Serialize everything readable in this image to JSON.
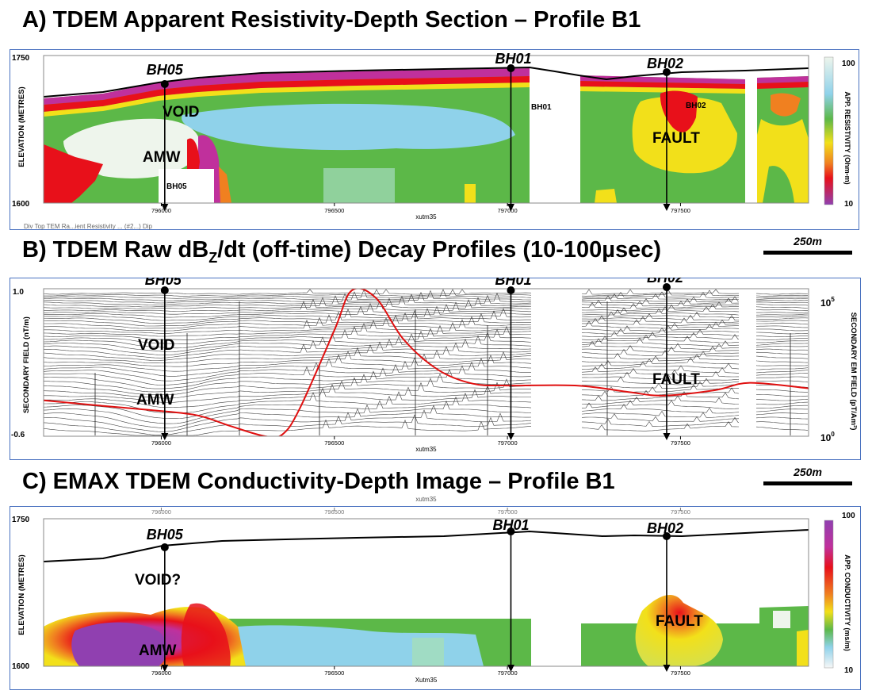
{
  "colors": {
    "frame": "#4a72c0",
    "trace": "#222222",
    "red_curve": "#e01010",
    "magenta": "#c0309c",
    "red": "#e8101a",
    "orange": "#f08020",
    "yellow": "#f2e01a",
    "green": "#5cb848",
    "light_blue": "#8fd2ea",
    "pale": "#eef5ec"
  },
  "panels": {
    "a": {
      "title": "A) TDEM Apparent Resistivity-Depth Section – Profile B1",
      "y_top": "1750",
      "y_bottom": "1600",
      "y_axis_label": "ELEVATION (METRES)",
      "colorbar_label": "APP. RESISTIVITY (Ohm-m)",
      "colorbar_max": "100",
      "colorbar_min": "10",
      "annotations": {
        "void": "VOID",
        "amw": "AMW",
        "fault": "FAULT"
      },
      "borehole_small": {
        "bh05": "BH05",
        "bh01": "BH01",
        "bh02": "BH02"
      },
      "overlay_text": "Div Top TEM Ra...ient Resistivity ... (#2...) Dip"
    },
    "b": {
      "title_pre": "B) TDEM Raw dB",
      "title_sub": "Z",
      "title_post": "/dt (off-time) Decay Profiles (10-100µsec)",
      "y_top": "1.0",
      "y_bottom": "-0.6",
      "y_axis_label": "SECONDARY FIELD (nT/m)",
      "right_axis_label": "SECONDARY EM FIELD (pT/Am²)",
      "right_top_base": "10",
      "right_top_exp": "5",
      "right_bottom_base": "10",
      "right_bottom_exp": "0",
      "annotations": {
        "void": "VOID",
        "amw": "AMW",
        "fault": "FAULT"
      },
      "scale_label": "250m"
    },
    "c": {
      "title": "C) EMAX TDEM Conductivity-Depth Image – Profile B1",
      "y_top": "1750",
      "y_bottom": "1600",
      "y_axis_label": "ELEVATION (METRES)",
      "colorbar_label": "APP. CONDUCTIVITY (ms/m)",
      "colorbar_max": "100",
      "colorbar_min": "10",
      "annotations": {
        "void": "VOID?",
        "amw": "AMW",
        "fault": "FAULT"
      },
      "x_axis_name_top": "xutm35",
      "scale_label": "250m"
    }
  },
  "boreholes": [
    "BH05",
    "BH01",
    "BH02"
  ],
  "x_ticks": [
    "796000",
    "796500",
    "797000",
    "797500"
  ],
  "x_axis_name": "xutm35",
  "x_axis_name_c": "Xutm35",
  "chart_data": [
    {
      "type": "heatmap",
      "title": "A) TDEM Apparent Resistivity-Depth Section – Profile B1",
      "xlabel": "xutm35",
      "ylabel": "ELEVATION (METRES)",
      "xlim": [
        795660,
        797870
      ],
      "ylim": [
        1600,
        1750
      ],
      "x_ticks": [
        796000,
        796500,
        797000,
        797500
      ],
      "colorbar": {
        "label": "APP. RESISTIVITY (Ohm-m)",
        "range": [
          10,
          100
        ],
        "scale": "log"
      },
      "boreholes": [
        {
          "name": "BH05",
          "x": 796010
        },
        {
          "name": "BH01",
          "x": 797010
        },
        {
          "name": "BH02",
          "x": 797460
        }
      ],
      "annotations": [
        "VOID",
        "AMW",
        "FAULT"
      ]
    },
    {
      "type": "line",
      "title": "B) TDEM Raw dBZ/dt (off-time) Decay Profiles (10-100µsec)",
      "xlabel": "xutm35",
      "ylabel": "SECONDARY FIELD (nT/m)",
      "ylim": [
        -0.6,
        1.0
      ],
      "x_ticks": [
        796000,
        796500,
        797000,
        797500
      ],
      "right_axis": {
        "label": "SECONDARY EM FIELD (pT/Am²)",
        "range": [
          "10^0",
          "10^5"
        ],
        "scale": "log"
      },
      "series": [
        {
          "x": [
            795660,
            795800,
            795950,
            796100,
            796200,
            796300,
            796350,
            796400,
            796500,
            796550,
            796620,
            796700,
            796800,
            796900,
            797000,
            797200,
            797350,
            797450,
            797600,
            797700,
            797870
          ],
          "values": [
            -0.21,
            -0.26,
            -0.31,
            -0.37,
            -0.49,
            -0.6,
            -0.58,
            -0.3,
            0.55,
            0.98,
            0.9,
            0.45,
            0.12,
            -0.03,
            -0.05,
            -0.05,
            -0.12,
            -0.16,
            -0.1,
            -0.02,
            -0.08
          ]
        }
      ],
      "annotations": [
        "VOID",
        "AMW",
        "FAULT"
      ]
    },
    {
      "type": "heatmap",
      "title": "C) EMAX TDEM Conductivity-Depth Image – Profile B1",
      "xlabel": "Xutm35",
      "ylabel": "ELEVATION (METRES)",
      "xlim": [
        795660,
        797870
      ],
      "ylim": [
        1600,
        1750
      ],
      "x_ticks": [
        796000,
        796500,
        797000,
        797500
      ],
      "colorbar": {
        "label": "APP. CONDUCTIVITY (ms/m)",
        "range": [
          10,
          100
        ],
        "scale": "log"
      },
      "boreholes": [
        {
          "name": "BH05",
          "x": 796010
        },
        {
          "name": "BH01",
          "x": 797010
        },
        {
          "name": "BH02",
          "x": 797460
        }
      ],
      "annotations": [
        "VOID?",
        "AMW",
        "FAULT"
      ]
    }
  ]
}
